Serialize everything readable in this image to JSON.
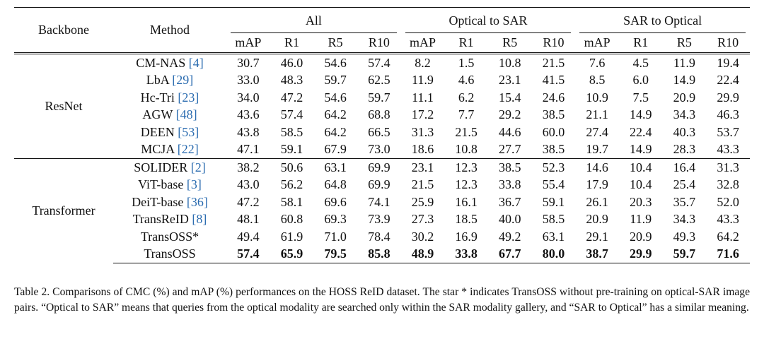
{
  "table": {
    "header_backbone": "Backbone",
    "header_method": "Method",
    "groups": [
      "All",
      "Optical to SAR",
      "SAR to Optical"
    ],
    "metrics": [
      "mAP",
      "R1",
      "R5",
      "R10",
      "mAP",
      "R1",
      "R5",
      "R10",
      "mAP",
      "R1",
      "R5",
      "R10"
    ],
    "sections": [
      {
        "backbone": "ResNet",
        "rows": [
          {
            "method": "CM-NAS",
            "cite": "[4]",
            "values": [
              "30.7",
              "46.0",
              "54.6",
              "57.4",
              "8.2",
              "1.5",
              "10.8",
              "21.5",
              "7.6",
              "4.5",
              "11.9",
              "19.4"
            ]
          },
          {
            "method": "LbA",
            "cite": "[29]",
            "values": [
              "33.0",
              "48.3",
              "59.7",
              "62.5",
              "11.9",
              "4.6",
              "23.1",
              "41.5",
              "8.5",
              "6.0",
              "14.9",
              "22.4"
            ]
          },
          {
            "method": "Hc-Tri",
            "cite": "[23]",
            "values": [
              "34.0",
              "47.2",
              "54.6",
              "59.7",
              "11.1",
              "6.2",
              "15.4",
              "24.6",
              "10.9",
              "7.5",
              "20.9",
              "29.9"
            ]
          },
          {
            "method": "AGW",
            "cite": "[48]",
            "values": [
              "43.6",
              "57.4",
              "64.2",
              "68.8",
              "17.2",
              "7.7",
              "29.2",
              "38.5",
              "21.1",
              "14.9",
              "34.3",
              "46.3"
            ]
          },
          {
            "method": "DEEN",
            "cite": "[53]",
            "values": [
              "43.8",
              "58.5",
              "64.2",
              "66.5",
              "31.3",
              "21.5",
              "44.6",
              "60.0",
              "27.4",
              "22.4",
              "40.3",
              "53.7"
            ]
          },
          {
            "method": "MCJA",
            "cite": "[22]",
            "values": [
              "47.1",
              "59.1",
              "67.9",
              "73.0",
              "18.6",
              "10.8",
              "27.7",
              "38.5",
              "19.7",
              "14.9",
              "28.3",
              "43.3"
            ]
          }
        ]
      },
      {
        "backbone": "Transformer",
        "rows": [
          {
            "method": "SOLIDER",
            "cite": "[2]",
            "values": [
              "38.2",
              "50.6",
              "63.1",
              "69.9",
              "23.1",
              "12.3",
              "38.5",
              "52.3",
              "14.6",
              "10.4",
              "16.4",
              "31.3"
            ]
          },
          {
            "method": "ViT-base",
            "cite": "[3]",
            "values": [
              "43.0",
              "56.2",
              "64.8",
              "69.9",
              "21.5",
              "12.3",
              "33.8",
              "55.4",
              "17.9",
              "10.4",
              "25.4",
              "32.8"
            ]
          },
          {
            "method": "DeiT-base",
            "cite": "[36]",
            "values": [
              "47.2",
              "58.1",
              "69.6",
              "74.1",
              "25.9",
              "16.1",
              "36.7",
              "59.1",
              "26.1",
              "20.3",
              "35.7",
              "52.0"
            ]
          },
          {
            "method": "TransReID",
            "cite": "[8]",
            "values": [
              "48.1",
              "60.8",
              "69.3",
              "73.9",
              "27.3",
              "18.5",
              "40.0",
              "58.5",
              "20.9",
              "11.9",
              "34.3",
              "43.3"
            ]
          },
          {
            "method": "TransOSS*",
            "cite": "",
            "values": [
              "49.4",
              "61.9",
              "71.0",
              "78.4",
              "30.2",
              "16.9",
              "49.2",
              "63.1",
              "29.1",
              "20.9",
              "49.3",
              "64.2"
            ]
          },
          {
            "method": "TransOSS",
            "cite": "",
            "bold": true,
            "values": [
              "57.4",
              "65.9",
              "79.5",
              "85.8",
              "48.9",
              "33.8",
              "67.7",
              "80.0",
              "38.7",
              "29.9",
              "59.7",
              "71.6"
            ]
          }
        ]
      }
    ]
  },
  "caption": "Table 2. Comparisons of CMC (%) and mAP (%) performances on the HOSS ReID dataset. The star * indicates TransOSS without pre-training on optical-SAR image pairs. “Optical to SAR” means that queries from the optical modality are searched only within the SAR modality gallery, and “SAR to Optical” has a similar meaning."
}
